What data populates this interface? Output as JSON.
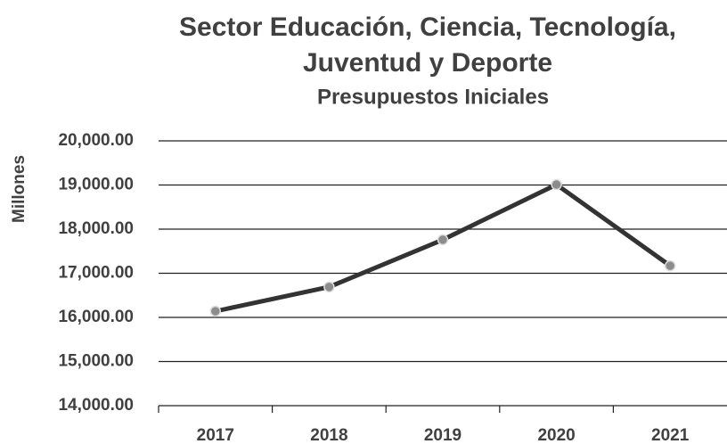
{
  "chart_data": {
    "type": "line",
    "title": [
      "Sector Educación, Ciencia, Tecnología,",
      "Juventud y Deporte"
    ],
    "subtitle": "Presupuestos Iniciales",
    "y_label": "Millones",
    "categories": [
      "2017",
      "2018",
      "2019",
      "2020",
      "2021"
    ],
    "series": [
      {
        "color": "#333333",
        "marker_color": "#8c8c8c",
        "values": [
          16140,
          16690,
          17760,
          19010,
          17170
        ]
      }
    ],
    "ylim": [
      14000,
      20000
    ],
    "yticks": [
      {
        "value": 14000,
        "label": "14,000.00"
      },
      {
        "value": 15000,
        "label": "15,000.00"
      },
      {
        "value": 16000,
        "label": "16,000.00"
      },
      {
        "value": 17000,
        "label": "17,000.00"
      },
      {
        "value": 18000,
        "label": "18,000.00"
      },
      {
        "value": 19000,
        "label": "19,000.00"
      },
      {
        "value": 20000,
        "label": "20,000.00"
      }
    ],
    "grid": true
  }
}
